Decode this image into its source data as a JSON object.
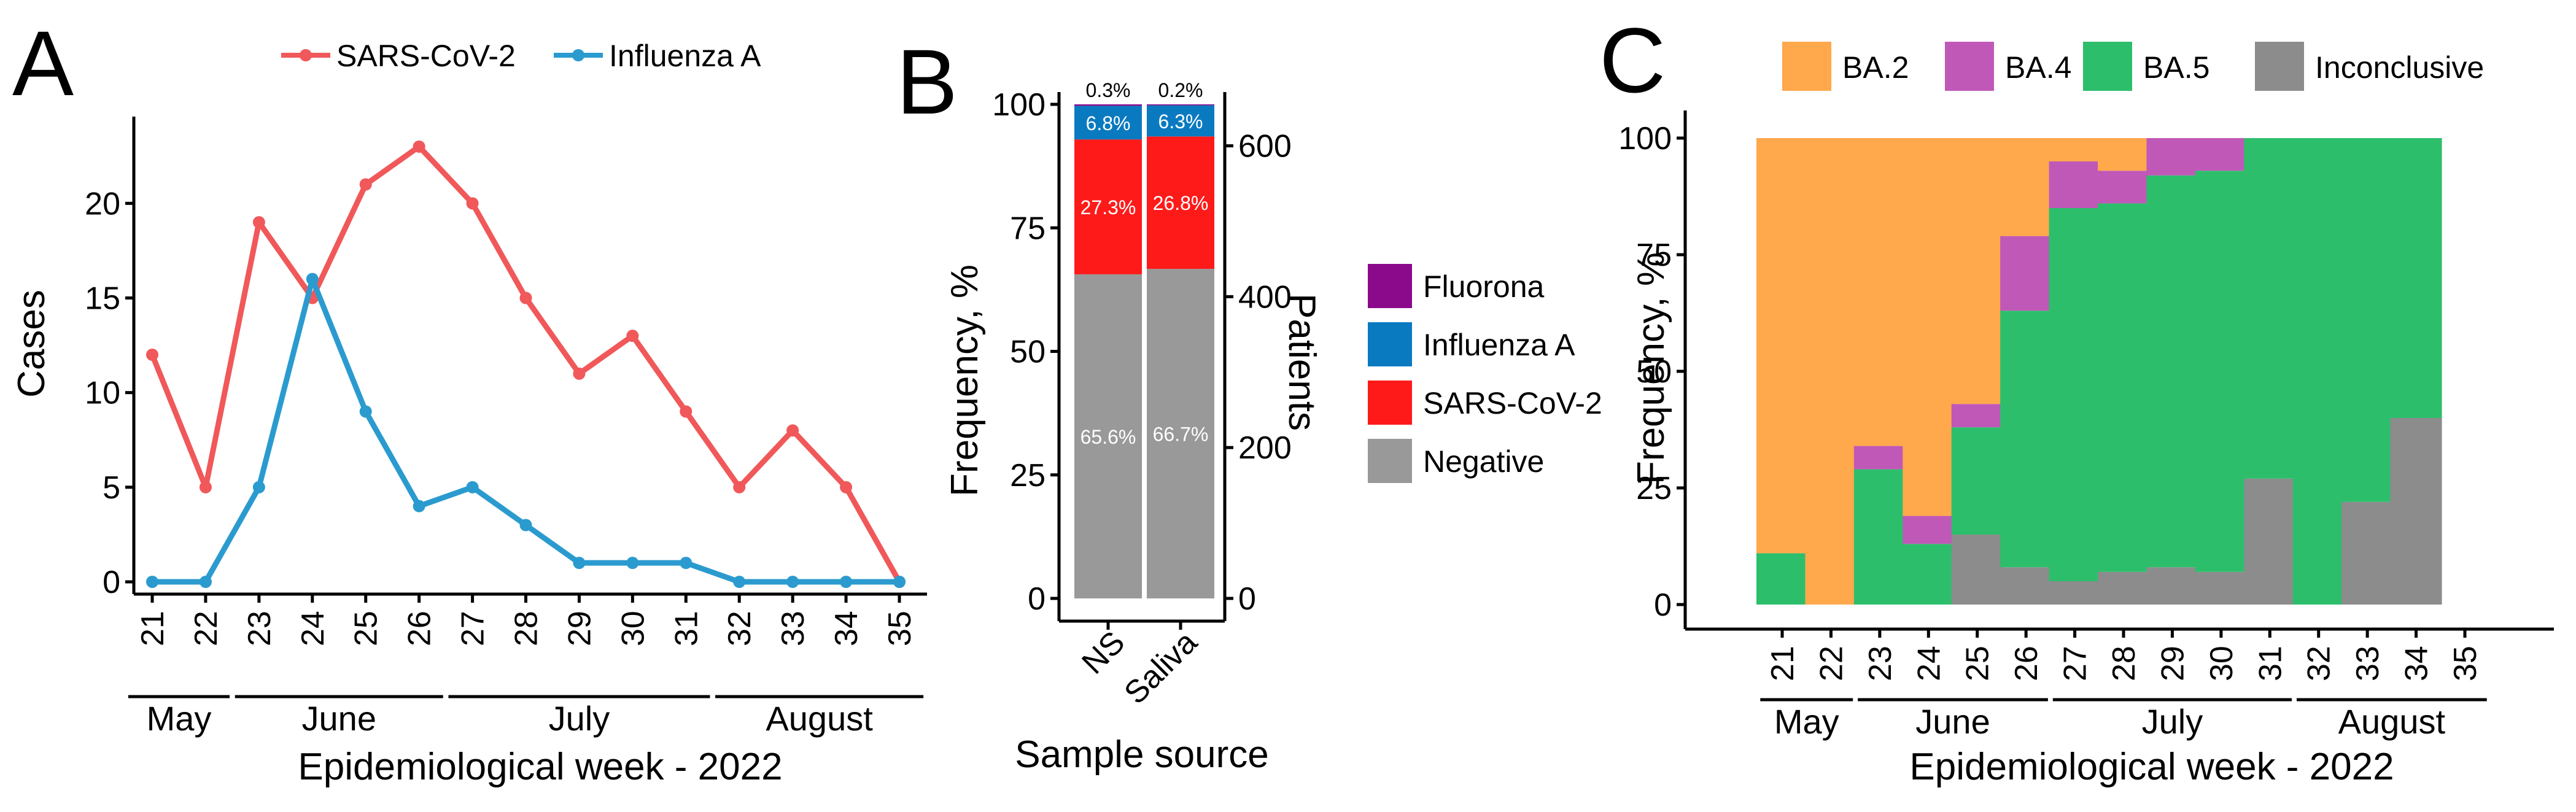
{
  "colors": {
    "sars": "#F0585A",
    "flu": "#2B9BCF",
    "negative": "#999999",
    "sars_bar": "#FF1A1A",
    "flu_bar": "#0A7AC0",
    "fluorona": "#8B0A8B",
    "ba2": "#FFA84C",
    "ba4": "#C058B8",
    "ba5": "#2DBE6C",
    "inconclusive": "#8C8C8C"
  },
  "chart_data": [
    {
      "id": "A",
      "panel_label": "A",
      "type": "line",
      "x": [
        21,
        22,
        23,
        24,
        25,
        26,
        27,
        28,
        29,
        30,
        31,
        32,
        33,
        34,
        35
      ],
      "series": [
        {
          "name": "SARS-CoV-2",
          "color": "#F0585A",
          "values": [
            12,
            5,
            19,
            15,
            21,
            23,
            20,
            15,
            11,
            13,
            9,
            5,
            8,
            5,
            0
          ]
        },
        {
          "name": "Influenza A",
          "color": "#2B9BCF",
          "values": [
            0,
            0,
            5,
            16,
            9,
            4,
            5,
            3,
            1,
            1,
            1,
            0,
            0,
            0,
            0
          ]
        }
      ],
      "ylim": [
        0,
        24
      ],
      "yticks": [
        "0",
        "5",
        "10",
        "15",
        "20"
      ],
      "xticks": [
        "21",
        "22",
        "23",
        "24",
        "25",
        "26",
        "27",
        "28",
        "29",
        "30",
        "31",
        "32",
        "33",
        "34",
        "35"
      ],
      "ylabel": "Cases",
      "xlabel": "Epidemiological week - 2022",
      "months": [
        {
          "name": "May",
          "from": 21,
          "to": 22
        },
        {
          "name": "June",
          "from": 23,
          "to": 26
        },
        {
          "name": "July",
          "from": 27,
          "to": 31
        },
        {
          "name": "August",
          "from": 32,
          "to": 35
        }
      ],
      "legend": [
        "SARS-CoV-2",
        "Influenza A"
      ],
      "legend_position": "top"
    },
    {
      "id": "B",
      "panel_label": "B",
      "type": "bar",
      "stacked": true,
      "categories": [
        "NS",
        "Saliva"
      ],
      "series": [
        {
          "name": "Negative",
          "color": "#999999",
          "values": [
            65.6,
            66.7
          ],
          "labels": [
            "65.6%",
            "66.7%"
          ]
        },
        {
          "name": "SARS-CoV-2",
          "color": "#FF1A1A",
          "values": [
            27.3,
            26.8
          ],
          "labels": [
            "27.3%",
            "26.8%"
          ]
        },
        {
          "name": "Influenza A",
          "color": "#0A7AC0",
          "values": [
            6.8,
            6.3
          ],
          "labels": [
            "6.8%",
            "6.3%"
          ]
        },
        {
          "name": "Fluorona",
          "color": "#8B0A8B",
          "values": [
            0.3,
            0.2
          ],
          "labels": [
            "0.3%",
            "0.2%"
          ]
        }
      ],
      "ylim": [
        0,
        100
      ],
      "yticks": [
        "0",
        "25",
        "50",
        "75",
        "100"
      ],
      "ylabel": "Frequency, %",
      "y2lim": [
        0,
        655
      ],
      "y2ticks": [
        "0",
        "200",
        "400",
        "600"
      ],
      "y2label": "Patients",
      "xlabel": "Sample source",
      "legend": [
        "Fluorona",
        "Influenza A",
        "SARS-CoV-2",
        "Negative"
      ],
      "legend_position": "right"
    },
    {
      "id": "C",
      "panel_label": "C",
      "type": "bar",
      "stacked": true,
      "categories": [
        "21",
        "22",
        "23",
        "24",
        "25",
        "26",
        "27",
        "28",
        "29",
        "30",
        "31",
        "32",
        "33",
        "34",
        "35"
      ],
      "series": [
        {
          "name": "Inconclusive",
          "color": "#8C8C8C",
          "values": [
            0,
            0,
            0,
            0,
            15,
            8,
            5,
            7,
            8,
            7,
            27,
            0,
            22,
            40,
            0
          ]
        },
        {
          "name": "BA.5",
          "color": "#2DBE6C",
          "values": [
            11,
            0,
            29,
            13,
            23,
            55,
            80,
            79,
            84,
            86,
            73,
            100,
            78,
            60,
            0
          ]
        },
        {
          "name": "BA.4",
          "color": "#C058B8",
          "values": [
            0,
            0,
            5,
            6,
            5,
            16,
            10,
            7,
            8,
            7,
            0,
            0,
            0,
            0,
            0
          ]
        },
        {
          "name": "BA.2",
          "color": "#FFA84C",
          "values": [
            89,
            100,
            66,
            81,
            57,
            21,
            5,
            7,
            0,
            0,
            0,
            0,
            0,
            0,
            0
          ]
        }
      ],
      "ylim": [
        0,
        100
      ],
      "yticks": [
        "0",
        "25",
        "50",
        "75",
        "100"
      ],
      "ylabel": "Frequency, %",
      "xlabel": "Epidemiological week - 2022",
      "months": [
        {
          "name": "May",
          "from": 21,
          "to": 22
        },
        {
          "name": "June",
          "from": 23,
          "to": 26
        },
        {
          "name": "July",
          "from": 27,
          "to": 31
        },
        {
          "name": "August",
          "from": 32,
          "to": 35
        }
      ],
      "legend": [
        "BA.2",
        "BA.4",
        "BA.5",
        "Inconclusive"
      ],
      "legend_position": "top"
    }
  ]
}
